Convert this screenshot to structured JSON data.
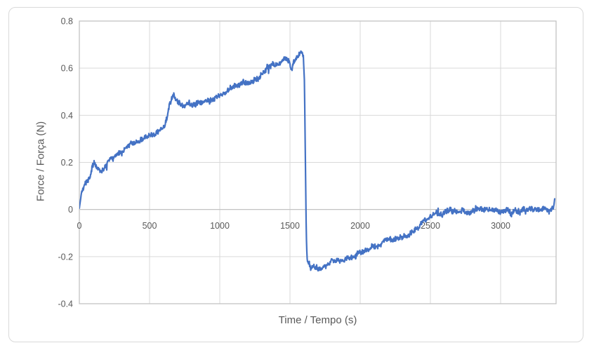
{
  "chart_data": {
    "type": "line",
    "title": "",
    "xlabel": "Time / Tempo (s)",
    "ylabel": "Force / Força (N)",
    "xlim": [
      0,
      3395
    ],
    "ylim": [
      -0.4,
      0.8
    ],
    "grid": true,
    "legend": false,
    "x_ticks": [
      0,
      500,
      1000,
      1500,
      2000,
      2500,
      3000
    ],
    "x_tick_labels": [
      "0",
      "500",
      "1000",
      "1500",
      "2000",
      "2500",
      "3000"
    ],
    "y_ticks": [
      0.8,
      0.6,
      0.4,
      0.2,
      0,
      -0.2,
      -0.4
    ],
    "y_tick_labels": [
      "0.8",
      "0.6",
      "0.4",
      "0.2",
      "0",
      "-0.2",
      "-0.4"
    ],
    "colors": {
      "line": "#4472C4",
      "gridline": "#D9D9D9",
      "axis_line": "#BFBFBF",
      "axis_text": "#595959",
      "chart_border": "#D9D9D9",
      "background": "#FFFFFF"
    },
    "series": [
      {
        "name": "force",
        "noise_amplitude": 0.012,
        "sample_step_s": 2.5,
        "points": [
          [
            0,
            0.005
          ],
          [
            8,
            0.04
          ],
          [
            15,
            0.07
          ],
          [
            25,
            0.095
          ],
          [
            35,
            0.105
          ],
          [
            50,
            0.115
          ],
          [
            65,
            0.125
          ],
          [
            80,
            0.15
          ],
          [
            95,
            0.195
          ],
          [
            105,
            0.205
          ],
          [
            115,
            0.19
          ],
          [
            130,
            0.175
          ],
          [
            150,
            0.17
          ],
          [
            170,
            0.17
          ],
          [
            190,
            0.18
          ],
          [
            210,
            0.21
          ],
          [
            225,
            0.22
          ],
          [
            250,
            0.23
          ],
          [
            275,
            0.24
          ],
          [
            300,
            0.25
          ],
          [
            325,
            0.26
          ],
          [
            345,
            0.275
          ],
          [
            365,
            0.285
          ],
          [
            395,
            0.285
          ],
          [
            425,
            0.29
          ],
          [
            455,
            0.3
          ],
          [
            475,
            0.305
          ],
          [
            500,
            0.315
          ],
          [
            525,
            0.32
          ],
          [
            550,
            0.33
          ],
          [
            575,
            0.335
          ],
          [
            600,
            0.355
          ],
          [
            625,
            0.385
          ],
          [
            645,
            0.44
          ],
          [
            665,
            0.475
          ],
          [
            675,
            0.485
          ],
          [
            690,
            0.465
          ],
          [
            705,
            0.45
          ],
          [
            730,
            0.435
          ],
          [
            755,
            0.44
          ],
          [
            780,
            0.445
          ],
          [
            805,
            0.45
          ],
          [
            830,
            0.455
          ],
          [
            855,
            0.45
          ],
          [
            880,
            0.455
          ],
          [
            905,
            0.46
          ],
          [
            930,
            0.47
          ],
          [
            955,
            0.475
          ],
          [
            980,
            0.48
          ],
          [
            1010,
            0.49
          ],
          [
            1040,
            0.495
          ],
          [
            1070,
            0.505
          ],
          [
            1100,
            0.515
          ],
          [
            1130,
            0.53
          ],
          [
            1160,
            0.535
          ],
          [
            1190,
            0.54
          ],
          [
            1220,
            0.545
          ],
          [
            1250,
            0.555
          ],
          [
            1280,
            0.565
          ],
          [
            1310,
            0.58
          ],
          [
            1340,
            0.595
          ],
          [
            1370,
            0.61
          ],
          [
            1400,
            0.62
          ],
          [
            1430,
            0.625
          ],
          [
            1455,
            0.635
          ],
          [
            1480,
            0.645
          ],
          [
            1500,
            0.615
          ],
          [
            1512,
            0.585
          ],
          [
            1525,
            0.625
          ],
          [
            1545,
            0.645
          ],
          [
            1565,
            0.655
          ],
          [
            1582,
            0.665
          ],
          [
            1595,
            0.655
          ],
          [
            1603,
            0.55
          ],
          [
            1610,
            0.2
          ],
          [
            1616,
            -0.1
          ],
          [
            1622,
            -0.215
          ],
          [
            1632,
            -0.23
          ],
          [
            1650,
            -0.245
          ],
          [
            1680,
            -0.25
          ],
          [
            1710,
            -0.248
          ],
          [
            1740,
            -0.245
          ],
          [
            1770,
            -0.238
          ],
          [
            1800,
            -0.23
          ],
          [
            1835,
            -0.222
          ],
          [
            1870,
            -0.215
          ],
          [
            1910,
            -0.205
          ],
          [
            1950,
            -0.195
          ],
          [
            2000,
            -0.18
          ],
          [
            2050,
            -0.17
          ],
          [
            2100,
            -0.155
          ],
          [
            2150,
            -0.14
          ],
          [
            2200,
            -0.125
          ],
          [
            2250,
            -0.118
          ],
          [
            2300,
            -0.115
          ],
          [
            2350,
            -0.102
          ],
          [
            2390,
            -0.085
          ],
          [
            2430,
            -0.062
          ],
          [
            2470,
            -0.045
          ],
          [
            2510,
            -0.028
          ],
          [
            2550,
            -0.015
          ],
          [
            2600,
            -0.006
          ],
          [
            2650,
            -0.002
          ],
          [
            2700,
            -0.004
          ],
          [
            2750,
            -0.01
          ],
          [
            2800,
            -0.006
          ],
          [
            2850,
            -0.004
          ],
          [
            2900,
            -0.008
          ],
          [
            2950,
            -0.006
          ],
          [
            3000,
            -0.008
          ],
          [
            3050,
            -0.004
          ],
          [
            3075,
            -0.02
          ],
          [
            3100,
            -0.006
          ],
          [
            3150,
            -0.008
          ],
          [
            3200,
            -0.005
          ],
          [
            3250,
            -0.008
          ],
          [
            3300,
            -0.004
          ],
          [
            3340,
            -0.006
          ],
          [
            3365,
            -0.002
          ],
          [
            3378,
            0.01
          ],
          [
            3385,
            0.045
          ]
        ]
      }
    ]
  }
}
